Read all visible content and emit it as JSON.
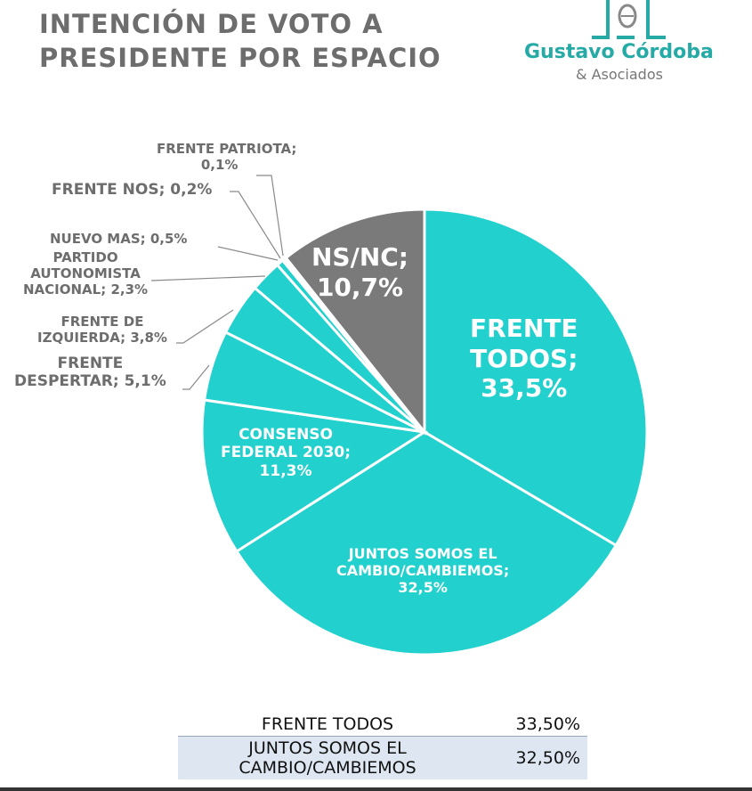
{
  "title_line1": "INTENCIÓN DE VOTO A",
  "title_line2": "PRESIDENTE POR ESPACIO",
  "logo": {
    "name": "Gustavo Córdoba",
    "sub": "& Asociados"
  },
  "chart_data": {
    "type": "pie",
    "title": "INTENCIÓN DE VOTO A PRESIDENTE POR ESPACIO",
    "start": "top",
    "direction": "clockwise",
    "slices": [
      {
        "label": "FRENTE TODOS",
        "value": 33.5,
        "display": "33,5%",
        "color": "#22d0cd"
      },
      {
        "label": "JUNTOS SOMOS EL CAMBIO/CAMBIEMOS",
        "value": 32.5,
        "display": "32,5%",
        "color": "#22d0cd"
      },
      {
        "label": "CONSENSO FEDERAL 2030",
        "value": 11.3,
        "display": "11,3%",
        "color": "#22d0cd"
      },
      {
        "label": "FRENTE DESPERTAR",
        "value": 5.1,
        "display": "5,1%",
        "color": "#22d0cd"
      },
      {
        "label": "FRENTE DE IZQUIERDA",
        "value": 3.8,
        "display": "3,8%",
        "color": "#22d0cd"
      },
      {
        "label": "PARTIDO AUTONOMISTA NACIONAL",
        "value": 2.3,
        "display": "2,3%",
        "color": "#22d0cd"
      },
      {
        "label": "NUEVO MAS",
        "value": 0.5,
        "display": "0,5%",
        "color": "#22d0cd"
      },
      {
        "label": "FRENTE NOS",
        "value": 0.2,
        "display": "0,2%",
        "color": "#22d0cd"
      },
      {
        "label": "FRENTE PATRIOTA",
        "value": 0.1,
        "display": "0,1%",
        "color": "#22d0cd"
      },
      {
        "label": "NS/NC",
        "value": 10.7,
        "display": "10,7%",
        "color": "#7a7a7a"
      }
    ],
    "label_text": {
      "todos": [
        "FRENTE",
        "TODOS;",
        "33,5%"
      ],
      "juntos": [
        "JUNTOS SOMOS EL",
        "CAMBIO/CAMBIEMOS;",
        "32,5%"
      ],
      "consenso": [
        "CONSENSO",
        "FEDERAL 2030;",
        "11,3%"
      ],
      "despertar": [
        "FRENTE",
        "DESPERTAR; 5,1%"
      ],
      "izquierda": [
        "FRENTE DE",
        "IZQUIERDA; 3,8%"
      ],
      "pan": [
        "PARTIDO",
        "AUTONOMISTA",
        "NACIONAL; 2,3%"
      ],
      "mas": [
        "NUEVO MAS; 0,5%"
      ],
      "nos": [
        "FRENTE NOS; 0,2%"
      ],
      "patriota": [
        "FRENTE PATRIOTA;",
        "0,1%"
      ],
      "nsnc": [
        "NS/NC;",
        "10,7%"
      ]
    }
  },
  "table": {
    "rows": [
      {
        "label": "FRENTE TODOS",
        "value": "33,50%"
      },
      {
        "label_1": "JUNTOS SOMOS EL",
        "label_2": "CAMBIO/CAMBIEMOS",
        "value": "32,50%"
      }
    ]
  }
}
